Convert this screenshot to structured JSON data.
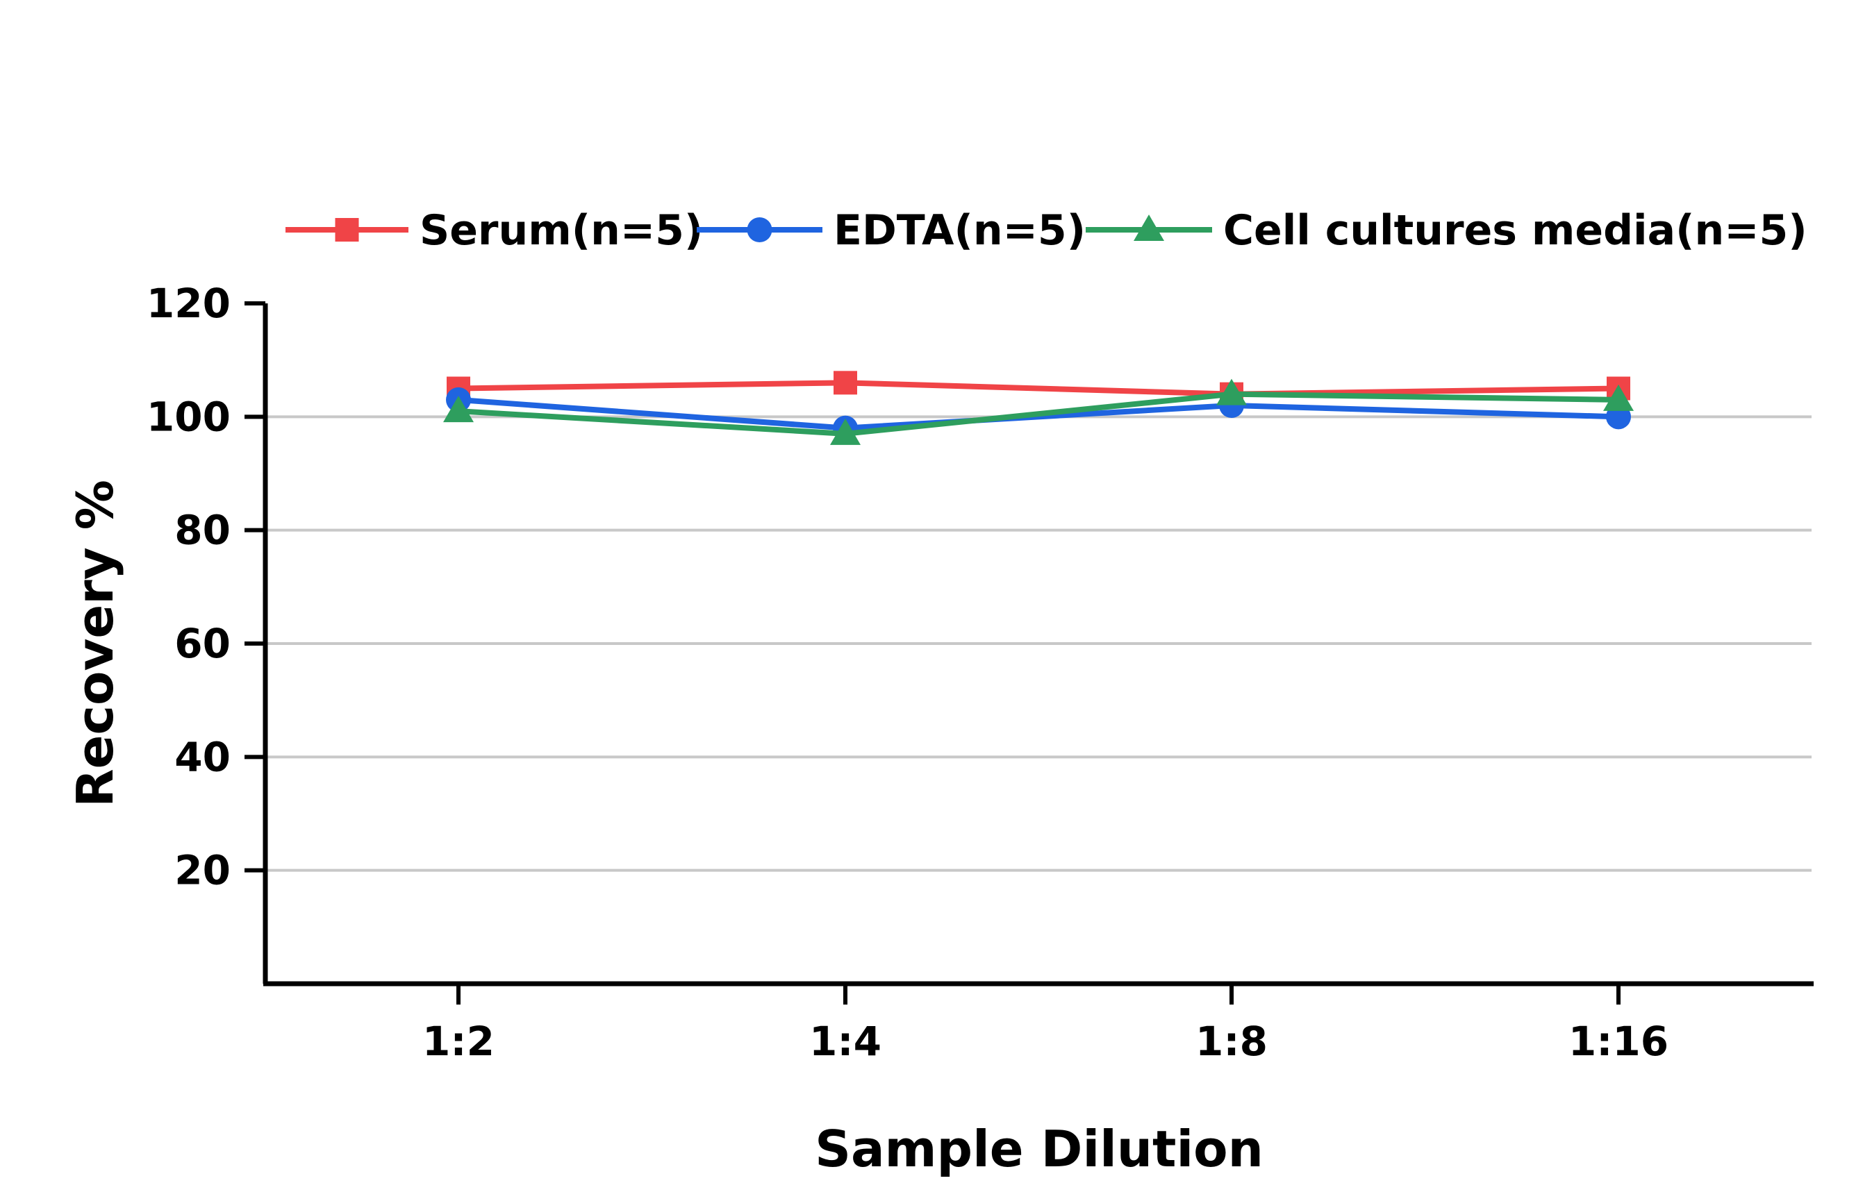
{
  "chart_data": {
    "type": "line",
    "categories": [
      "1:2",
      "1:4",
      "1:8",
      "1:16"
    ],
    "series": [
      {
        "name": "Serum(n=5)",
        "values": [
          105,
          106,
          104,
          105
        ],
        "color": "#f04447",
        "marker": "square"
      },
      {
        "name": "EDTA(n=5)",
        "values": [
          103,
          98,
          102,
          100
        ],
        "color": "#1f64e0",
        "marker": "circle"
      },
      {
        "name": "Cell cultures media(n=5)",
        "values": [
          101,
          97,
          104,
          103
        ],
        "color": "#2e9e5e",
        "marker": "triangle"
      }
    ],
    "xlabel": "Sample Dilution",
    "ylabel": "Recovery %",
    "ylim": [
      0,
      120
    ],
    "yticks": [
      20,
      40,
      60,
      80,
      100,
      120
    ],
    "grid": true,
    "legend_position": "top"
  }
}
